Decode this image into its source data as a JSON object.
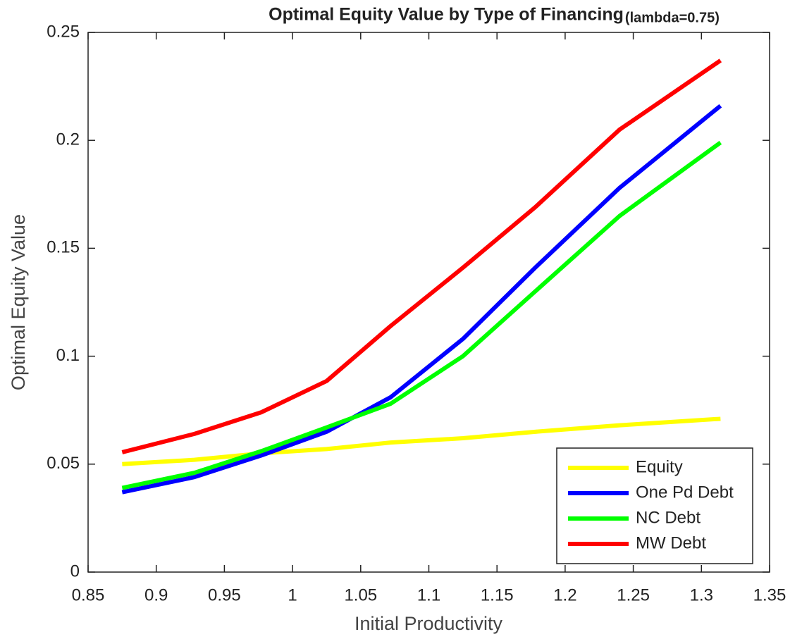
{
  "chart_data": {
    "type": "line",
    "title": "Optimal Equity Value by Type of Financing",
    "subtitle": "(lambda=0.75)",
    "x_label": "Initial Productivity",
    "y_label": "Optimal Equity Value",
    "x": [
      0.875,
      0.928,
      0.977,
      1.025,
      1.072,
      1.125,
      1.178,
      1.24,
      1.314
    ],
    "series": [
      {
        "name": "Equity",
        "color": "#ffff00",
        "values": [
          0.05,
          0.052,
          0.055,
          0.057,
          0.06,
          0.062,
          0.065,
          0.068,
          0.071
        ]
      },
      {
        "name": "One Pd Debt",
        "color": "#0000ff",
        "values": [
          0.037,
          0.044,
          0.054,
          0.065,
          0.081,
          0.108,
          0.141,
          0.178,
          0.216
        ]
      },
      {
        "name": "NC Debt",
        "color": "#00ff00",
        "values": [
          0.039,
          0.046,
          0.056,
          0.067,
          0.078,
          0.1,
          0.13,
          0.165,
          0.199
        ]
      },
      {
        "name": "MW Debt",
        "color": "#ff0000",
        "values": [
          0.0555,
          0.064,
          0.074,
          0.0885,
          0.114,
          0.141,
          0.169,
          0.205,
          0.237
        ]
      }
    ],
    "xlim": [
      0.85,
      1.35
    ],
    "xticks": [
      0.85,
      0.9,
      0.95,
      1,
      1.05,
      1.1,
      1.15,
      1.2,
      1.25,
      1.3,
      1.35
    ],
    "ylim": [
      0,
      0.25
    ],
    "yticks": [
      0,
      0.05,
      0.1,
      0.15,
      0.2,
      0.25
    ],
    "legend": "lower right",
    "grid": false
  }
}
